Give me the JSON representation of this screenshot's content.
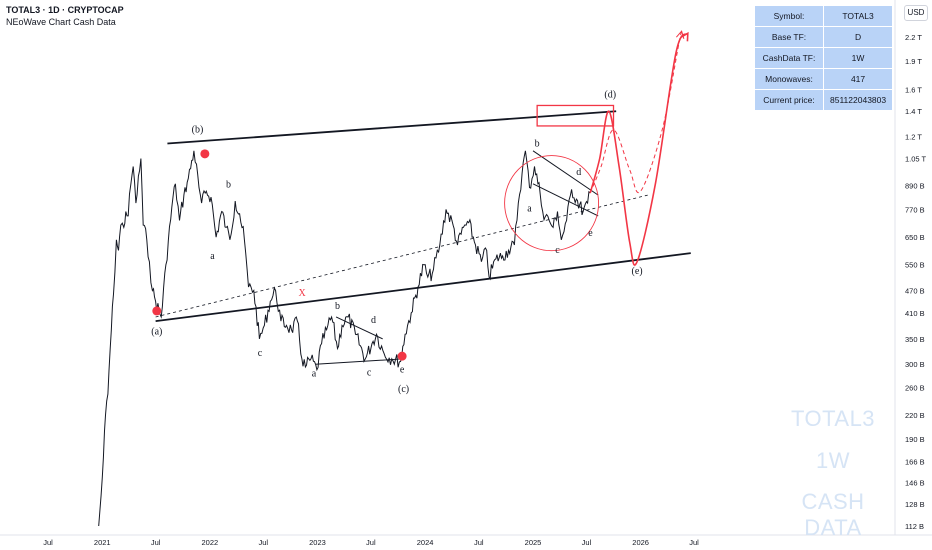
{
  "header": {
    "title": "TOTAL3 · 1D · CRYPTOCAP",
    "subtitle": "NEoWave Chart Cash Data",
    "currency": "USD"
  },
  "info_table": {
    "rows": [
      {
        "label": "Symbol:",
        "value": "TOTAL3"
      },
      {
        "label": "Base TF:",
        "value": "D"
      },
      {
        "label": "CashData TF:",
        "value": "1W"
      },
      {
        "label": "Monowaves:",
        "value": "417"
      },
      {
        "label": "Current price:",
        "value": "851122043803"
      }
    ]
  },
  "watermark": [
    "TOTAL3",
    "1W",
    "CASH DATA"
  ],
  "colors": {
    "price_line": "#131722",
    "accent": "#f23645",
    "table_bg": "#b9d3f7",
    "watermark": "#d6e4f5"
  },
  "chart_data": {
    "type": "line",
    "series": [
      {
        "name": "",
        "unit": "USD",
        "scale": "log"
      }
    ],
    "y_ticks": [
      "2.2 T",
      "1.9 T",
      "1.6 T",
      "1.4 T",
      "1.2 T",
      "1.05 T",
      "890 B",
      "770 B",
      "650 B",
      "550 B",
      "470 B",
      "410 B",
      "350 B",
      "300 B",
      "260 B",
      "220 B",
      "190 B",
      "166 B",
      "146 B",
      "128 B",
      "112 B"
    ],
    "x_ticks": [
      "Jul",
      "2021",
      "Jul",
      "2022",
      "Jul",
      "2023",
      "Jul",
      "2024",
      "Jul",
      "2025",
      "Jul",
      "2026",
      "Jul"
    ],
    "price_path": [
      [
        "2020-12-20",
        112
      ],
      [
        "2020-12-28",
        135
      ],
      [
        "2021-01-05",
        170
      ],
      [
        "2021-01-12",
        220
      ],
      [
        "2021-01-20",
        250
      ],
      [
        "2021-01-28",
        330
      ],
      [
        "2021-02-08",
        460
      ],
      [
        "2021-02-18",
        640
      ],
      [
        "2021-02-25",
        600
      ],
      [
        "2021-03-05",
        700
      ],
      [
        "2021-03-15",
        690
      ],
      [
        "2021-03-22",
        760
      ],
      [
        "2021-03-30",
        740
      ],
      [
        "2021-04-08",
        900
      ],
      [
        "2021-04-16",
        1000
      ],
      [
        "2021-04-25",
        800
      ],
      [
        "2021-05-12",
        1050
      ],
      [
        "2021-05-20",
        700
      ],
      [
        "2021-06-01",
        640
      ],
      [
        "2021-06-10",
        560
      ],
      [
        "2021-06-20",
        470
      ],
      [
        "2021-07-01",
        440
      ],
      [
        "2021-07-20",
        400
      ],
      [
        "2021-08-05",
        550
      ],
      [
        "2021-08-25",
        780
      ],
      [
        "2021-09-06",
        900
      ],
      [
        "2021-09-20",
        720
      ],
      [
        "2021-10-05",
        840
      ],
      [
        "2021-10-20",
        930
      ],
      [
        "2021-11-08",
        1100
      ],
      [
        "2021-11-25",
        880
      ],
      [
        "2021-12-04",
        800
      ],
      [
        "2021-12-20",
        860
      ],
      [
        "2022-01-05",
        830
      ],
      [
        "2022-01-22",
        650
      ],
      [
        "2022-02-10",
        760
      ],
      [
        "2022-02-25",
        690
      ],
      [
        "2022-03-10",
        640
      ],
      [
        "2022-03-28",
        810
      ],
      [
        "2022-04-12",
        750
      ],
      [
        "2022-04-28",
        640
      ],
      [
        "2022-05-12",
        480
      ],
      [
        "2022-05-30",
        470
      ],
      [
        "2022-06-18",
        350
      ],
      [
        "2022-07-05",
        380
      ],
      [
        "2022-07-25",
        440
      ],
      [
        "2022-08-12",
        470
      ],
      [
        "2022-08-30",
        390
      ],
      [
        "2022-09-18",
        380
      ],
      [
        "2022-10-05",
        370
      ],
      [
        "2022-10-25",
        390
      ],
      [
        "2022-11-09",
        310
      ],
      [
        "2022-11-21",
        295
      ],
      [
        "2022-12-10",
        310
      ],
      [
        "2022-12-30",
        290
      ],
      [
        "2023-01-15",
        340
      ],
      [
        "2023-02-01",
        370
      ],
      [
        "2023-02-18",
        400
      ],
      [
        "2023-03-10",
        330
      ],
      [
        "2023-03-25",
        380
      ],
      [
        "2023-04-15",
        400
      ],
      [
        "2023-05-10",
        360
      ],
      [
        "2023-06-12",
        310
      ],
      [
        "2023-07-05",
        340
      ],
      [
        "2023-07-20",
        360
      ],
      [
        "2023-08-15",
        320
      ],
      [
        "2023-09-10",
        310
      ],
      [
        "2023-10-10",
        305
      ],
      [
        "2023-10-25",
        360
      ],
      [
        "2023-11-15",
        410
      ],
      [
        "2023-12-08",
        480
      ],
      [
        "2023-12-28",
        550
      ],
      [
        "2024-01-10",
        510
      ],
      [
        "2024-01-25",
        520
      ],
      [
        "2024-02-20",
        620
      ],
      [
        "2024-03-12",
        770
      ],
      [
        "2024-04-05",
        700
      ],
      [
        "2024-04-20",
        620
      ],
      [
        "2024-05-10",
        690
      ],
      [
        "2024-05-28",
        710
      ],
      [
        "2024-06-20",
        620
      ],
      [
        "2024-07-10",
        560
      ],
      [
        "2024-07-28",
        600
      ],
      [
        "2024-08-05",
        510
      ],
      [
        "2024-08-28",
        570
      ],
      [
        "2024-09-20",
        580
      ],
      [
        "2024-10-10",
        600
      ],
      [
        "2024-10-30",
        620
      ],
      [
        "2024-11-12",
        800
      ],
      [
        "2024-11-25",
        960
      ],
      [
        "2024-12-06",
        1100
      ],
      [
        "2024-12-20",
        880
      ],
      [
        "2025-01-06",
        1000
      ],
      [
        "2025-01-25",
        850
      ],
      [
        "2025-02-03",
        760
      ],
      [
        "2025-02-25",
        720
      ],
      [
        "2025-03-10",
        690
      ],
      [
        "2025-03-25",
        760
      ],
      [
        "2025-04-07",
        640
      ],
      [
        "2025-04-25",
        720
      ],
      [
        "2025-05-12",
        870
      ],
      [
        "2025-05-28",
        820
      ],
      [
        "2025-06-20",
        760
      ],
      [
        "2025-07-05",
        800
      ],
      [
        "2025-07-14",
        851
      ]
    ],
    "projection_solid": [
      [
        "2025-07-14",
        851
      ],
      [
        "2025-08-15",
        1050
      ],
      [
        "2025-09-15",
        1400
      ],
      [
        "2025-10-20",
        1000
      ],
      [
        "2025-11-25",
        630
      ],
      [
        "2025-12-20",
        560
      ],
      [
        "2026-02-20",
        900
      ],
      [
        "2026-05-01",
        2000
      ],
      [
        "2026-06-10",
        2250
      ]
    ],
    "projection_dashed": [
      [
        "2025-07-14",
        851
      ],
      [
        "2025-08-20",
        1000
      ],
      [
        "2025-10-01",
        1250
      ],
      [
        "2025-11-25",
        980
      ],
      [
        "2026-01-01",
        860
      ],
      [
        "2026-03-15",
        1250
      ],
      [
        "2026-05-10",
        2100
      ],
      [
        "2026-05-20",
        2280
      ]
    ],
    "trendlines": [
      {
        "style": "solid",
        "from": [
          "2021-08-10",
          1150
        ],
        "to": [
          "2025-10-10",
          1400
        ]
      },
      {
        "style": "solid",
        "from": [
          "2021-07-01",
          390
        ],
        "to": [
          "2026-06-20",
          590
        ]
      },
      {
        "style": "dashed",
        "from": [
          "2021-07-01",
          400
        ],
        "to": [
          "2026-01-25",
          840
        ]
      },
      {
        "style": "solid",
        "from": [
          "2023-03-05",
          400
        ],
        "to": [
          "2023-08-10",
          350
        ]
      },
      {
        "style": "solid",
        "from": [
          "2022-12-25",
          300
        ],
        "to": [
          "2023-10-20",
          310
        ]
      },
      {
        "style": "solid",
        "from": [
          "2025-01-01",
          1100
        ],
        "to": [
          "2025-08-10",
          840
        ]
      },
      {
        "style": "solid",
        "from": [
          "2025-01-01",
          900
        ],
        "to": [
          "2025-08-10",
          740
        ]
      }
    ],
    "annotations": [
      {
        "text": "(a)",
        "x": "2021-07-05",
        "y": 360
      },
      {
        "text": "(b)",
        "x": "2021-11-20",
        "y": 1230
      },
      {
        "text": "b",
        "x": "2022-03-05",
        "y": 880
      },
      {
        "text": "a",
        "x": "2022-01-10",
        "y": 570
      },
      {
        "text": "c",
        "x": "2022-06-20",
        "y": 315
      },
      {
        "text": "X",
        "x": "2022-11-10",
        "y": 455,
        "color": "accent"
      },
      {
        "text": "b",
        "x": "2023-03-10",
        "y": 420
      },
      {
        "text": "d",
        "x": "2023-07-10",
        "y": 385
      },
      {
        "text": "a",
        "x": "2022-12-20",
        "y": 278
      },
      {
        "text": "c",
        "x": "2023-06-25",
        "y": 280
      },
      {
        "text": "e",
        "x": "2023-10-15",
        "y": 285
      },
      {
        "text": "(c)",
        "x": "2023-10-20",
        "y": 253
      },
      {
        "text": "(d)",
        "x": "2025-09-20",
        "y": 1520
      },
      {
        "text": "b",
        "x": "2025-01-15",
        "y": 1130
      },
      {
        "text": "a",
        "x": "2024-12-20",
        "y": 760
      },
      {
        "text": "d",
        "x": "2025-06-05",
        "y": 950
      },
      {
        "text": "c",
        "x": "2025-03-25",
        "y": 590
      },
      {
        "text": "e",
        "x": "2025-07-15",
        "y": 655
      },
      {
        "text": "(e)",
        "x": "2025-12-20",
        "y": 520
      }
    ],
    "markers": [
      {
        "x": "2021-07-05",
        "y": 415
      },
      {
        "x": "2021-12-15",
        "y": 1080
      },
      {
        "x": "2023-10-15",
        "y": 315
      }
    ],
    "highlight_circle": {
      "center": [
        "2025-03-05",
        800
      ],
      "ry_factor": 1.35
    },
    "highlight_box": {
      "from": [
        "2025-01-15",
        1450
      ],
      "to": [
        "2025-10-01",
        1280
      ]
    }
  }
}
